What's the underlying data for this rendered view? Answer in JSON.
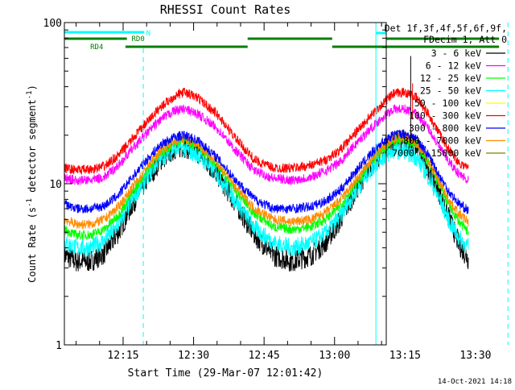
{
  "chart_data": {
    "type": "line",
    "title": "RHESSI Count Rates",
    "xlabel": "Start Time (29-Mar-07 12:01:42)",
    "ylabel_main": "Count Rate (s",
    "ylabel_sup": "-1",
    "ylabel_rest": " detector segment",
    "ylabel_sup2": "-1",
    "ylabel_end": ")",
    "y_scale": "log",
    "ylim": [
      1,
      100
    ],
    "y_ticks": [
      {
        "value": 1,
        "label": "1"
      },
      {
        "value": 10,
        "label": "10"
      },
      {
        "value": 100,
        "label": "100"
      }
    ],
    "x_range_min": [
      2.5,
      71.0
    ],
    "x_ticks": [
      {
        "value": 15,
        "label": "12:15"
      },
      {
        "value": 30,
        "label": "12:30"
      },
      {
        "value": 45,
        "label": "12:45"
      },
      {
        "value": 60,
        "label": "13:00"
      },
      {
        "value": 75,
        "label": "13:15"
      },
      {
        "value": 90,
        "label": "13:30"
      }
    ],
    "legend": {
      "placement": "right",
      "header": [
        "Det 1f,3f,4f,5f,6f,9f,",
        "FDecim 1, Att 0"
      ],
      "entries": [
        {
          "label": "3 - 6 keV",
          "color": "#000000"
        },
        {
          "label": "6 - 12 keV",
          "color": "#ff00ff"
        },
        {
          "label": "12 - 25 keV",
          "color": "#00ff00"
        },
        {
          "label": "25 - 50 keV",
          "color": "#00ffff"
        },
        {
          "label": "50 - 100 keV",
          "color": "#ffff00"
        },
        {
          "label": "100 - 300 keV",
          "color": "#ff0000"
        },
        {
          "label": "300 - 800 keV",
          "color": "#0000ff"
        },
        {
          "label": "800 - 7000 keV",
          "color": "#ff8c00"
        },
        {
          "label": "7000 - 15000 keV",
          "color": "#808000"
        }
      ]
    },
    "x_profile": [
      2.5,
      6,
      10,
      14,
      18,
      22,
      25,
      27,
      29,
      31,
      34,
      38,
      42,
      46,
      50,
      54,
      58,
      62,
      66,
      70,
      73,
      75,
      77,
      79,
      82,
      86,
      89,
      92,
      95,
      98,
      101,
      103,
      105,
      107,
      109,
      111,
      113,
      115,
      117,
      119,
      121,
      123,
      125,
      127,
      129,
      131,
      133,
      135
    ],
    "series": [
      {
        "color": "#ff0000",
        "values": [
          12.5,
          12.2,
          12.2,
          12.8,
          15,
          19,
          24,
          30,
          35,
          37,
          34,
          27,
          19,
          14,
          12.5,
          12.5,
          13,
          14,
          16,
          20,
          25,
          31,
          36,
          37,
          34,
          27,
          20,
          16,
          13.5,
          12.5
        ]
      },
      {
        "color": "#ff00ff",
        "values": [
          10.8,
          10.5,
          10.5,
          11,
          13,
          16.5,
          20.5,
          25,
          28.5,
          29,
          27,
          22,
          16,
          12,
          10.8,
          10.5,
          11,
          12,
          13.5,
          17,
          21,
          25.5,
          29,
          29,
          27,
          22,
          16.5,
          13.5,
          11.5,
          10.5
        ]
      },
      {
        "color": "#0000ff",
        "values": [
          7.5,
          7.0,
          7.0,
          7.3,
          8.5,
          11,
          14,
          17.5,
          19.5,
          20,
          18.5,
          14.5,
          10.5,
          8,
          7.0,
          7.0,
          7.2,
          7.8,
          9,
          11.5,
          14.5,
          18,
          20,
          20.5,
          19,
          15,
          11,
          8.8,
          7.5,
          6.8
        ]
      },
      {
        "color": "#ff8c00",
        "values": [
          6.0,
          5.6,
          5.6,
          6.0,
          7.2,
          9.5,
          12.5,
          16,
          18.5,
          19,
          17.5,
          13.5,
          9.5,
          7,
          6.0,
          5.8,
          6.0,
          6.6,
          7.8,
          10,
          13,
          16.5,
          19,
          19.5,
          18,
          14,
          10,
          7.8,
          6.5,
          5.8
        ]
      },
      {
        "color": "#00ff00",
        "values": [
          5.2,
          4.8,
          4.8,
          5.2,
          6.4,
          8.8,
          12,
          15.5,
          18,
          18.5,
          17,
          13,
          9,
          6.5,
          5.4,
          5.2,
          5.4,
          6.0,
          7.2,
          9.5,
          12.5,
          16,
          18.5,
          19,
          17.5,
          13.5,
          9.5,
          7.2,
          5.8,
          5.0
        ]
      },
      {
        "color": "#00ffff",
        "values": [
          4.3,
          4.0,
          4.0,
          4.4,
          5.6,
          8,
          11,
          14.5,
          16.5,
          16.5,
          15,
          11.5,
          7.8,
          5.3,
          4.3,
          4.0,
          4.3,
          4.9,
          6.2,
          8.5,
          11.5,
          14.5,
          16,
          16,
          14.5,
          11,
          7.8,
          5.8,
          4.6,
          4.0
        ]
      },
      {
        "color": "#000000",
        "values": [
          3.6,
          3.3,
          3.3,
          3.7,
          5.0,
          7.5,
          10.5,
          14,
          16.5,
          17,
          15.5,
          11.5,
          7.5,
          4.8,
          3.6,
          3.3,
          3.6,
          4.3,
          5.8,
          8.5,
          12,
          15.5,
          18,
          18.5,
          17,
          12.5,
          8.5,
          6,
          4.2,
          3.4
        ]
      }
    ],
    "series_x": [
      2.5,
      5,
      8,
      11,
      14,
      17,
      20,
      23,
      26,
      28,
      31,
      35,
      39,
      43,
      47,
      51,
      55,
      58,
      61,
      64,
      67,
      70,
      72.5,
      75,
      77.5,
      80,
      82.5,
      84.5,
      86.5,
      88.5
    ],
    "annotations": {
      "attenuator_label": "N",
      "rd0_label": "RD0",
      "rd4_label": "RD4",
      "timestamp": "14-Oct-2021 14:18"
    }
  }
}
